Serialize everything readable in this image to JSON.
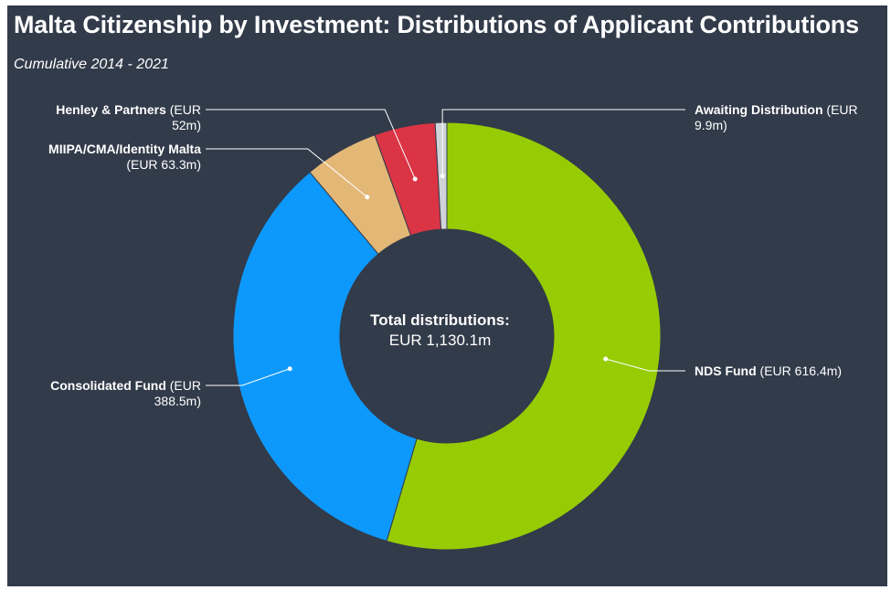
{
  "title": "Malta Citizenship by Investment: Distributions of Applicant Contributions",
  "subtitle": "Cumulative 2014 - 2021",
  "center": {
    "title": "Total distributions:",
    "value": "EUR 1,130.1m"
  },
  "labels": {
    "henley": {
      "name": "Henley & Partners",
      "value_a": "(EUR",
      "value_b": "52m)"
    },
    "miipa": {
      "name": "MIIPA/CMA/Identity Malta",
      "value": "(EUR 63.3m)"
    },
    "consolidated": {
      "name": "Consolidated Fund",
      "value_a": "(EUR",
      "value_b": "388.5m)"
    },
    "awaiting": {
      "name": "Awaiting Distribution",
      "value_a": "(EUR",
      "value_b": "9.9m)"
    },
    "nds": {
      "name": "NDS Fund",
      "value": "(EUR 616.4m)"
    }
  },
  "chart_data": {
    "type": "pie",
    "variant": "donut",
    "title": "Malta Citizenship by Investment: Distributions of Applicant Contributions",
    "subtitle": "Cumulative 2014 - 2021",
    "total_label": "Total distributions:",
    "total": 1130.1,
    "unit": "EUR m",
    "slices": [
      {
        "name": "NDS Fund",
        "value": 616.4,
        "color": "#97cc04"
      },
      {
        "name": "Consolidated Fund",
        "value": 388.5,
        "color": "#0d99fc"
      },
      {
        "name": "MIIPA/CMA/Identity Malta",
        "value": 63.3,
        "color": "#e3b877"
      },
      {
        "name": "Henley & Partners",
        "value": 52.0,
        "color": "#db3445"
      },
      {
        "name": "Awaiting Distribution",
        "value": 9.9,
        "color": "#d0d3d8"
      }
    ]
  },
  "colors": {
    "background": "#323b4a",
    "text": "#ffffff",
    "connector": "#ffffff"
  }
}
